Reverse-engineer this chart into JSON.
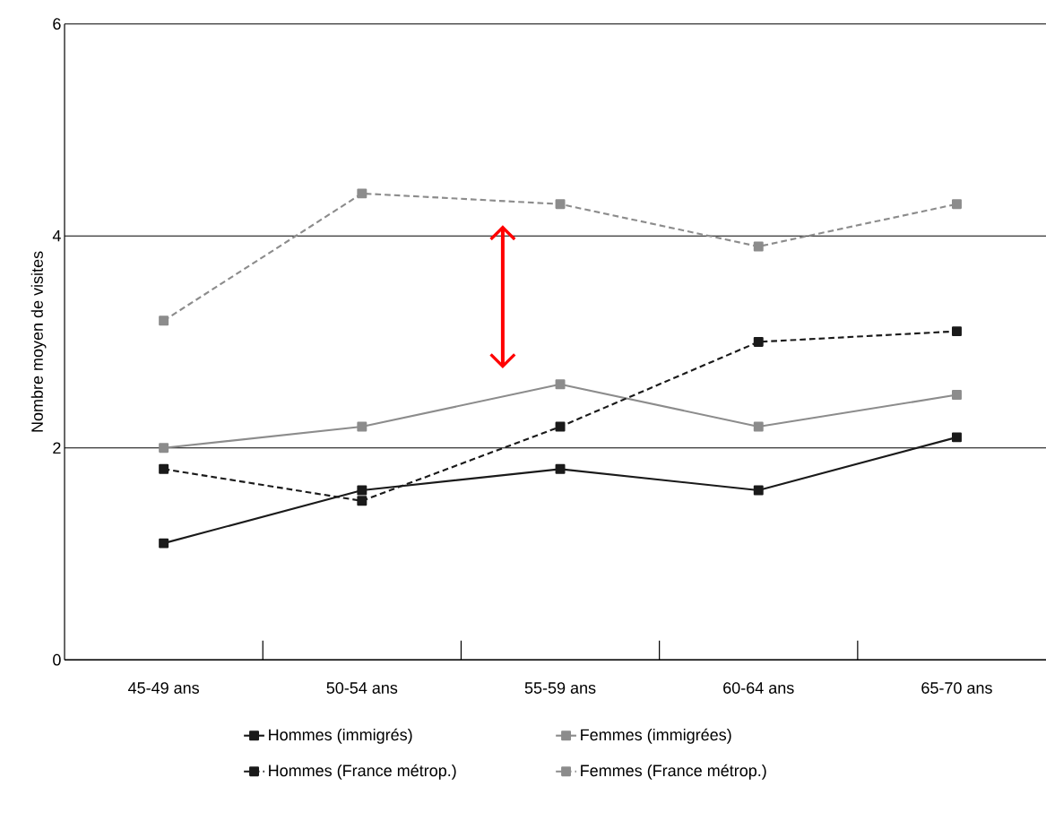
{
  "chart_data": {
    "type": "line",
    "ylabel": "Nombre moyen de visites",
    "categories": [
      "45-49 ans",
      "50-54 ans",
      "55-59 ans",
      "60-64 ans",
      "65-70 ans"
    ],
    "series": [
      {
        "name": "Hommes (immigrés)",
        "color": "#1a1a1a",
        "line_style": "solid",
        "values": [
          1.1,
          1.6,
          1.8,
          1.6,
          2.1
        ]
      },
      {
        "name": "Femmes (immigrées)",
        "color": "#8c8c8c",
        "line_style": "solid",
        "values": [
          2.0,
          2.2,
          2.6,
          2.2,
          2.5
        ]
      },
      {
        "name": "Hommes (France métrop.)",
        "color": "#1a1a1a",
        "line_style": "dashed",
        "values": [
          1.8,
          1.5,
          2.2,
          3.0,
          3.1
        ]
      },
      {
        "name": "Femmes (France métrop.)",
        "color": "#8c8c8c",
        "line_style": "dashed",
        "values": [
          3.2,
          4.4,
          4.3,
          3.9,
          4.3
        ]
      }
    ],
    "ylim": [
      0,
      6
    ],
    "yticks": [
      0,
      2,
      4,
      6
    ],
    "grid": "y",
    "legend": "bottom",
    "marker": "square"
  }
}
